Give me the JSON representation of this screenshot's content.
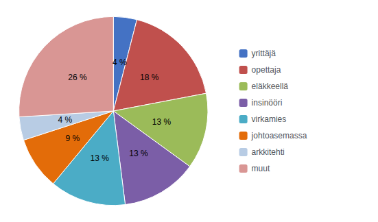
{
  "chart_data": {
    "type": "pie",
    "categories": [
      "yrittäjä",
      "opettaja",
      "eläkkeellä",
      "insinööri",
      "virkamies",
      "johtoasemassa",
      "arkkitehti",
      "muut"
    ],
    "values": [
      4,
      18,
      13,
      13,
      13,
      9,
      4,
      26
    ],
    "value_labels": [
      "4 %",
      "18 %",
      "13 %",
      "13 %",
      "13 %",
      "9 %",
      "4 %",
      "26 %"
    ],
    "colors": [
      "#4472C4",
      "#C0504D",
      "#9BBB59",
      "#7B5EA7",
      "#4BACC6",
      "#E36C09",
      "#B8CCE4",
      "#D99694"
    ],
    "data_labels": true,
    "legend": "right"
  }
}
